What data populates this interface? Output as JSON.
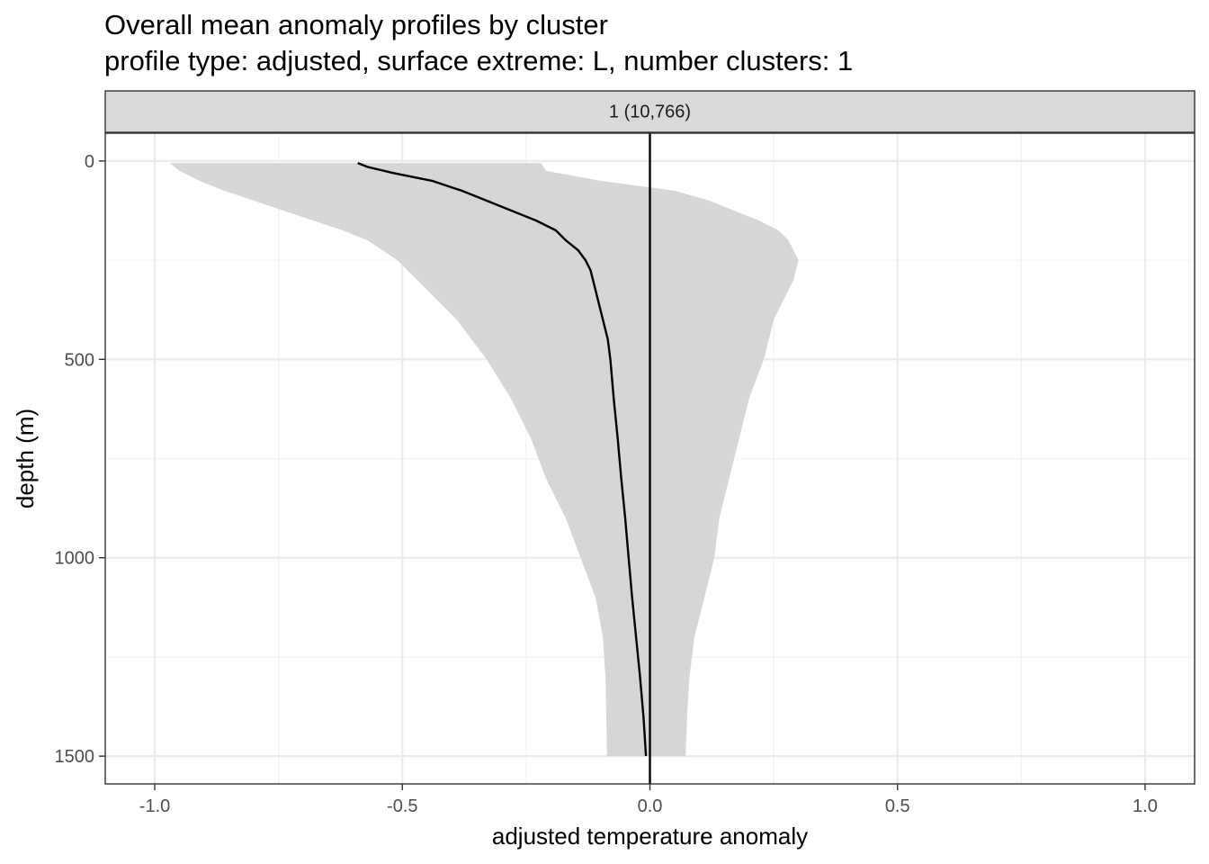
{
  "chart_data": {
    "type": "area",
    "title": "Overall mean anomaly profiles by cluster",
    "subtitle": "profile type: adjusted, surface extreme: L, number clusters: 1",
    "xlabel": "adjusted temperature anomaly",
    "ylabel": "depth (m)",
    "xlim": [
      -1.1,
      1.1
    ],
    "ylim": [
      1570,
      -70
    ],
    "y_reversed": true,
    "grid": true,
    "panels": [
      {
        "strip_label": "1 (10,766)",
        "mean_profile": {
          "depth": [
            5,
            15,
            30,
            50,
            75,
            100,
            125,
            150,
            175,
            200,
            225,
            250,
            275,
            300,
            350,
            400,
            450,
            500,
            600,
            700,
            800,
            900,
            1000,
            1100,
            1200,
            1300,
            1400,
            1500
          ],
          "value": [
            -0.59,
            -0.57,
            -0.52,
            -0.44,
            -0.38,
            -0.33,
            -0.28,
            -0.23,
            -0.19,
            -0.17,
            -0.145,
            -0.13,
            -0.12,
            -0.115,
            -0.105,
            -0.095,
            -0.085,
            -0.08,
            -0.073,
            -0.065,
            -0.058,
            -0.05,
            -0.043,
            -0.036,
            -0.028,
            -0.02,
            -0.013,
            -0.008
          ]
        },
        "band": {
          "depth": [
            5,
            25,
            50,
            75,
            100,
            125,
            150,
            175,
            200,
            250,
            300,
            350,
            400,
            450,
            500,
            600,
            700,
            800,
            900,
            1000,
            1100,
            1200,
            1300,
            1400,
            1500
          ],
          "lower": [
            -0.97,
            -0.95,
            -0.91,
            -0.86,
            -0.8,
            -0.74,
            -0.68,
            -0.62,
            -0.57,
            -0.51,
            -0.47,
            -0.43,
            -0.39,
            -0.36,
            -0.33,
            -0.28,
            -0.24,
            -0.21,
            -0.17,
            -0.14,
            -0.11,
            -0.095,
            -0.09,
            -0.088,
            -0.087
          ],
          "upper": [
            -0.22,
            -0.21,
            -0.1,
            0.05,
            0.12,
            0.17,
            0.22,
            0.26,
            0.28,
            0.3,
            0.29,
            0.27,
            0.25,
            0.24,
            0.23,
            0.2,
            0.18,
            0.16,
            0.14,
            0.13,
            0.11,
            0.09,
            0.08,
            0.075,
            0.072
          ]
        },
        "reference_line_x": 0
      }
    ],
    "x_ticks": [
      {
        "value": -1.0,
        "label": "-1.0"
      },
      {
        "value": -0.5,
        "label": "-0.5"
      },
      {
        "value": 0.0,
        "label": "0.0"
      },
      {
        "value": 0.5,
        "label": "0.5"
      },
      {
        "value": 1.0,
        "label": "1.0"
      }
    ],
    "y_ticks": [
      {
        "value": 0,
        "label": "0"
      },
      {
        "value": 500,
        "label": "500"
      },
      {
        "value": 1000,
        "label": "1000"
      },
      {
        "value": 1500,
        "label": "1500"
      }
    ],
    "colors": {
      "band": "#d6d6d6",
      "line": "#000000",
      "grid_major": "#ebebeb",
      "grid_minor": "#f2f2f2",
      "strip_fill": "#d9d9d9",
      "panel_border": "#333333"
    }
  }
}
